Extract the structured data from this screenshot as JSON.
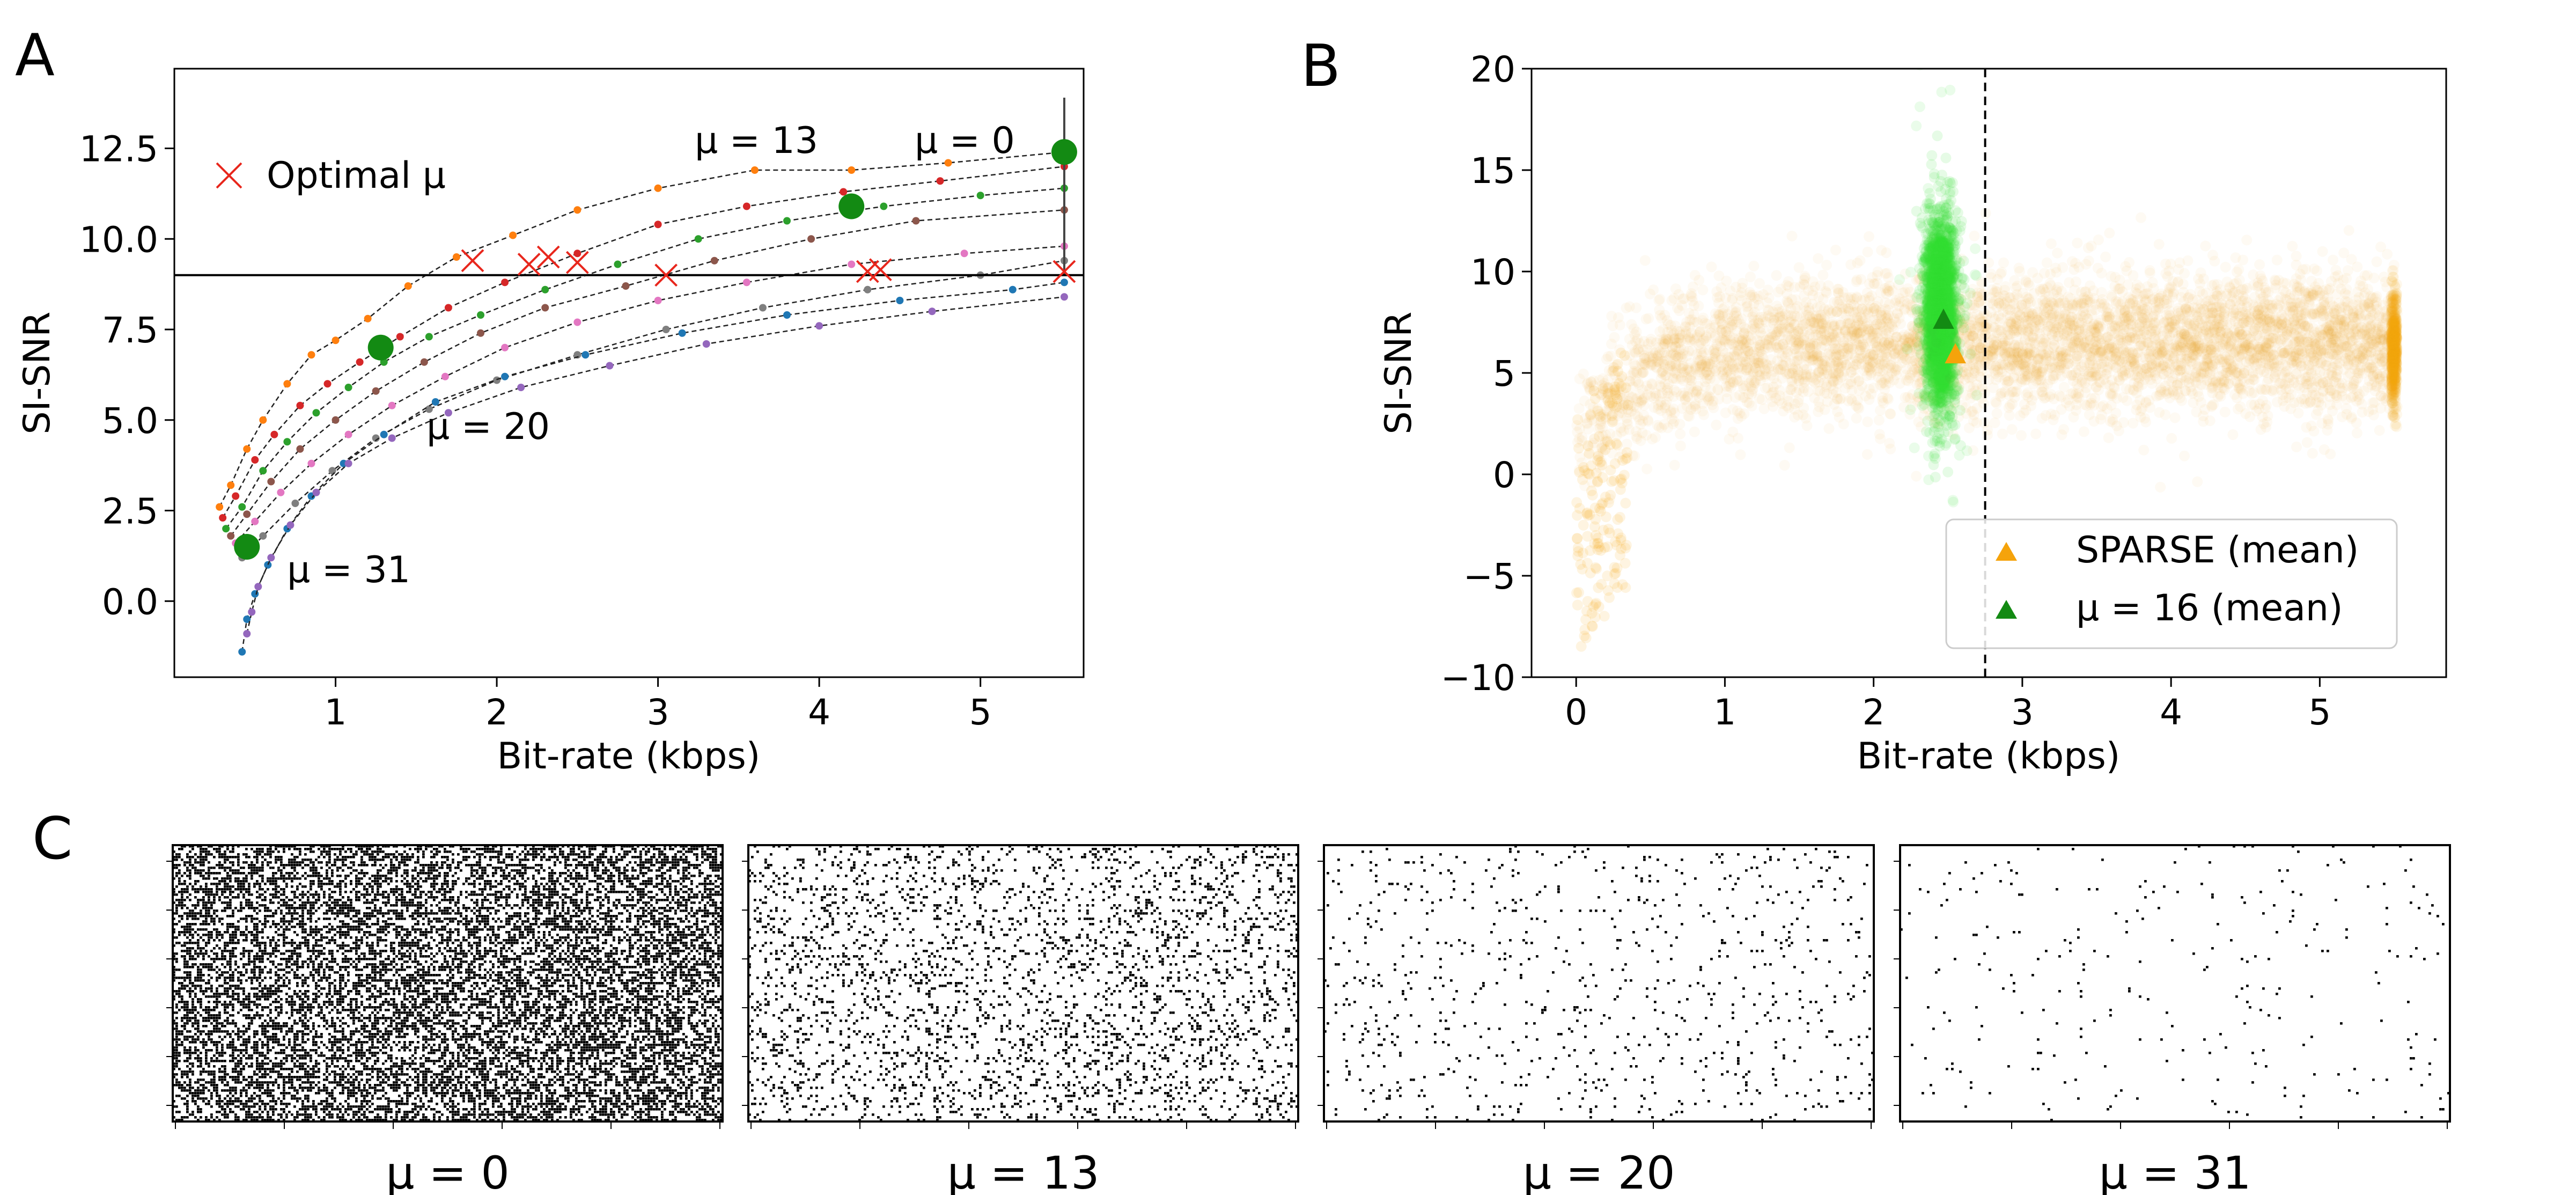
{
  "chart_data": [
    {
      "panel": "A",
      "type": "line",
      "xlabel": "Bit-rate (kbps)",
      "ylabel": "SI-SNR",
      "xlim": [
        0.0,
        5.64
      ],
      "ylim": [
        -2.1,
        14.7
      ],
      "xticks": [
        1,
        2,
        3,
        4,
        5
      ],
      "yticks": [
        0.0,
        2.5,
        5.0,
        7.5,
        10.0,
        12.5
      ],
      "ytick_labels": [
        "0.0",
        "2.5",
        "5.0",
        "7.5",
        "10.0",
        "12.5"
      ],
      "hline": 9.0,
      "legend": {
        "label": "Optimal μ",
        "placement": "upper-left",
        "color": "#e8261c"
      },
      "annotations": [
        {
          "text": "μ = 13",
          "x": 3.3,
          "y": 12.8
        },
        {
          "text": "μ = 0",
          "x": 4.65,
          "y": 12.8
        },
        {
          "text": "μ = 20",
          "x": 1.65,
          "y": 4.1
        },
        {
          "text": "μ = 31",
          "x": 0.82,
          "y": 0.4
        }
      ],
      "series": [
        {
          "color": "#ff7f0e",
          "x": [
            0.28,
            0.35,
            0.45,
            0.55,
            0.7,
            0.85,
            1.0,
            1.2,
            1.45,
            1.75,
            2.1,
            2.5,
            3.0,
            3.6,
            4.2,
            4.8,
            5.52
          ],
          "y": [
            2.6,
            3.2,
            4.2,
            5.0,
            6.0,
            6.8,
            7.2,
            7.8,
            8.7,
            9.5,
            10.1,
            10.8,
            11.4,
            11.9,
            11.9,
            12.1,
            12.4
          ]
        },
        {
          "color": "#d62728",
          "x": [
            0.3,
            0.38,
            0.5,
            0.62,
            0.78,
            0.95,
            1.15,
            1.4,
            1.7,
            2.05,
            2.5,
            3.0,
            3.55,
            4.15,
            4.75,
            5.52
          ],
          "y": [
            2.3,
            2.9,
            3.9,
            4.6,
            5.4,
            6.0,
            6.6,
            7.3,
            8.1,
            8.8,
            9.6,
            10.4,
            10.9,
            11.3,
            11.6,
            12.0
          ]
        },
        {
          "color": "#2ca02c",
          "x": [
            0.32,
            0.42,
            0.55,
            0.7,
            0.88,
            1.08,
            1.3,
            1.58,
            1.9,
            2.3,
            2.75,
            3.25,
            3.8,
            4.4,
            5.0,
            5.52
          ],
          "y": [
            2.0,
            2.6,
            3.6,
            4.4,
            5.2,
            5.9,
            6.6,
            7.3,
            7.9,
            8.6,
            9.3,
            10.0,
            10.5,
            10.9,
            11.2,
            11.4
          ]
        },
        {
          "color": "#8c564b",
          "x": [
            0.35,
            0.45,
            0.6,
            0.78,
            1.0,
            1.25,
            1.55,
            1.9,
            2.3,
            2.8,
            3.35,
            3.95,
            4.6,
            5.52
          ],
          "y": [
            1.8,
            2.4,
            3.3,
            4.2,
            5.0,
            5.8,
            6.6,
            7.4,
            8.1,
            8.7,
            9.4,
            10.0,
            10.5,
            10.8
          ]
        },
        {
          "color": "#e377c2",
          "x": [
            0.38,
            0.5,
            0.66,
            0.85,
            1.08,
            1.35,
            1.68,
            2.05,
            2.5,
            3.0,
            3.55,
            4.2,
            4.9,
            5.52
          ],
          "y": [
            1.6,
            2.2,
            3.0,
            3.8,
            4.6,
            5.4,
            6.2,
            7.0,
            7.7,
            8.3,
            8.8,
            9.3,
            9.6,
            9.8
          ]
        },
        {
          "color": "#7f7f7f",
          "x": [
            0.42,
            0.55,
            0.75,
            0.98,
            1.25,
            1.58,
            2.0,
            2.5,
            3.05,
            3.65,
            4.3,
            5.0,
            5.52
          ],
          "y": [
            1.2,
            1.8,
            2.7,
            3.6,
            4.5,
            5.3,
            6.1,
            6.8,
            7.5,
            8.1,
            8.6,
            9.0,
            9.4
          ]
        },
        {
          "color": "#1f77b4",
          "x": [
            0.42,
            0.45,
            0.5,
            0.58,
            0.7,
            0.85,
            1.05,
            1.3,
            1.62,
            2.05,
            2.55,
            3.15,
            3.8,
            4.5,
            5.2,
            5.52
          ],
          "y": [
            -1.4,
            -0.5,
            0.2,
            1.0,
            2.0,
            2.9,
            3.8,
            4.6,
            5.5,
            6.2,
            6.8,
            7.4,
            7.9,
            8.3,
            8.6,
            8.8
          ]
        },
        {
          "color": "#9467bd",
          "x": [
            0.45,
            0.48,
            0.52,
            0.6,
            0.72,
            0.88,
            1.08,
            1.35,
            1.7,
            2.15,
            2.7,
            3.3,
            4.0,
            4.7,
            5.52
          ],
          "y": [
            -0.9,
            -0.3,
            0.4,
            1.2,
            2.1,
            3.0,
            3.8,
            4.5,
            5.2,
            5.9,
            6.5,
            7.1,
            7.6,
            8.0,
            8.4
          ]
        }
      ],
      "optimal_mu_points": {
        "x": [
          1.85,
          2.2,
          2.32,
          2.5,
          3.05,
          4.3,
          4.38,
          5.52
        ],
        "y": [
          9.4,
          9.3,
          9.5,
          9.35,
          9.0,
          9.1,
          9.15,
          9.1
        ]
      },
      "highlight_points": {
        "color": "#138a13",
        "x": [
          0.45,
          1.28,
          4.2,
          5.52
        ],
        "y": [
          1.5,
          7.0,
          10.9,
          12.4
        ]
      }
    },
    {
      "panel": "B",
      "type": "scatter",
      "xlabel": "Bit-rate (kbps)",
      "ylabel": "SI-SNR",
      "xlim": [
        -0.3,
        5.85
      ],
      "ylim": [
        -10,
        20
      ],
      "xticks": [
        0,
        1,
        2,
        3,
        4,
        5
      ],
      "yticks": [
        -10,
        -5,
        0,
        5,
        10,
        15,
        20
      ],
      "ytick_labels": [
        "−10",
        "−5",
        "0",
        "5",
        "10",
        "15",
        "20"
      ],
      "vline": 2.75,
      "legend": {
        "placement": "lower-right",
        "entries": [
          {
            "label": "SPARSE (mean)",
            "color": "#f5a30b"
          },
          {
            "label": "μ = 16 (mean)",
            "color": "#138a13"
          }
        ]
      },
      "series": [
        {
          "name": "SPARSE (mean)",
          "color": "#f5a30b",
          "mean": {
            "x": 2.55,
            "y": 5.9
          }
        },
        {
          "name": "μ = 16 (mean)",
          "color": "#138a13",
          "mean": {
            "x": 2.47,
            "y": 7.6
          }
        }
      ]
    }
  ],
  "panel_letters": [
    "A",
    "B",
    "C"
  ],
  "rasters": [
    {
      "label": "μ = 0",
      "density": 0.5
    },
    {
      "label": "μ = 13",
      "density": 0.14
    },
    {
      "label": "μ = 20",
      "density": 0.035
    },
    {
      "label": "μ = 31",
      "density": 0.012
    }
  ]
}
